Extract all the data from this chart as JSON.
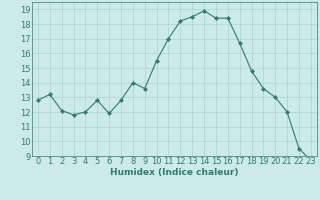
{
  "x": [
    0,
    1,
    2,
    3,
    4,
    5,
    6,
    7,
    8,
    9,
    10,
    11,
    12,
    13,
    14,
    15,
    16,
    17,
    18,
    19,
    20,
    21,
    22,
    23
  ],
  "y": [
    12.8,
    13.2,
    12.1,
    11.8,
    12.0,
    12.8,
    11.9,
    12.8,
    14.0,
    13.6,
    15.5,
    17.0,
    18.2,
    18.5,
    18.9,
    18.4,
    18.4,
    16.7,
    14.8,
    13.6,
    13.0,
    12.0,
    9.5,
    8.7
  ],
  "line_color": "#2e7d6e",
  "marker": "D",
  "marker_size": 2,
  "bg_color": "#cceae7",
  "grid_color": "#b0d8d4",
  "xlabel": "Humidex (Indice chaleur)",
  "xlim": [
    -0.5,
    23.5
  ],
  "ylim": [
    9,
    19.5
  ],
  "yticks": [
    9,
    10,
    11,
    12,
    13,
    14,
    15,
    16,
    17,
    18,
    19
  ],
  "xticks": [
    0,
    1,
    2,
    3,
    4,
    5,
    6,
    7,
    8,
    9,
    10,
    11,
    12,
    13,
    14,
    15,
    16,
    17,
    18,
    19,
    20,
    21,
    22,
    23
  ],
  "label_fontsize": 6.5,
  "tick_fontsize": 6
}
